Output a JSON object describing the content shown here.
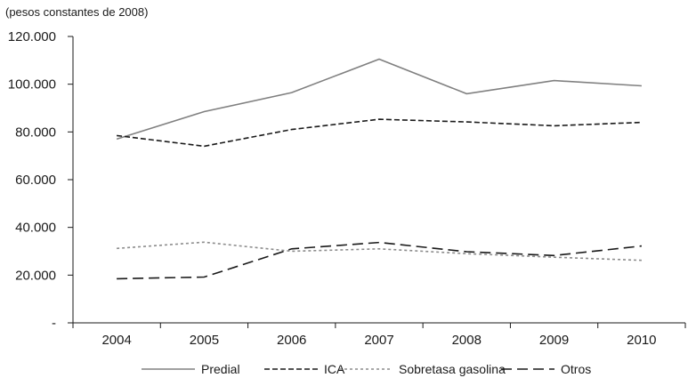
{
  "chart_data": {
    "type": "line",
    "title": "",
    "xlabel": "",
    "ylabel": "(pesos constantes de 2008)",
    "x": [
      "2004",
      "2005",
      "2006",
      "2007",
      "2008",
      "2009",
      "2010"
    ],
    "ylim": [
      0,
      120000
    ],
    "y_ticks": [
      {
        "value": 0,
        "label": "-"
      },
      {
        "value": 20000,
        "label": "20.000"
      },
      {
        "value": 40000,
        "label": "40.000"
      },
      {
        "value": 60000,
        "label": "60.000"
      },
      {
        "value": 80000,
        "label": "80.000"
      },
      {
        "value": 100000,
        "label": "100.000"
      },
      {
        "value": 120000,
        "label": "120.000"
      }
    ],
    "grid": false,
    "legend_position": "bottom",
    "series": [
      {
        "name": "Predial",
        "color": "#808080",
        "dash": "solid",
        "values": [
          77000,
          88500,
          96500,
          110500,
          96000,
          101500,
          99300
        ]
      },
      {
        "name": "ICA",
        "color": "#1a1a1a",
        "dash": "dashed",
        "values": [
          78500,
          74000,
          81000,
          85300,
          84200,
          82600,
          84000
        ]
      },
      {
        "name": "Sobretasa gasolina",
        "color": "#8c8c8c",
        "dash": "dotted",
        "values": [
          31200,
          33800,
          30000,
          31000,
          29000,
          27500,
          26200
        ]
      },
      {
        "name": "Otros",
        "color": "#1a1a1a",
        "dash": "longdash",
        "values": [
          18500,
          19200,
          31000,
          33700,
          29800,
          28200,
          32200
        ]
      }
    ]
  }
}
